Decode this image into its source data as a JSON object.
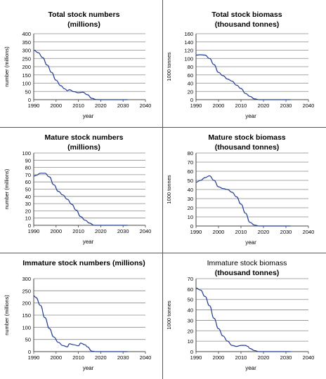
{
  "chart_data": [
    {
      "type": "line",
      "title": "Total stock numbers",
      "subtitle": "(millions)",
      "title_style": "bold",
      "xlabel": "year",
      "ylabel": "number (millions)",
      "xlim": [
        1990,
        2040
      ],
      "ylim": [
        0,
        400
      ],
      "xticks": [
        1990,
        2000,
        2010,
        2020,
        2030,
        2040
      ],
      "yticks": [
        0,
        50,
        100,
        150,
        200,
        250,
        300,
        350,
        400
      ],
      "grid": true,
      "series_color": "#1f3a93",
      "x": [
        1990,
        1992,
        1994,
        1996,
        1998,
        2000,
        2002,
        2004,
        2005,
        2006,
        2008,
        2010,
        2012,
        2014,
        2016,
        2018,
        2020,
        2025,
        2032
      ],
      "y": [
        300,
        285,
        255,
        210,
        165,
        118,
        85,
        65,
        55,
        60,
        48,
        42,
        45,
        30,
        8,
        1,
        0,
        0,
        0
      ]
    },
    {
      "type": "line",
      "title": "Total stock biomass",
      "subtitle": "(thousand tonnes)",
      "title_style": "bold",
      "xlabel": "year",
      "ylabel": "1000 tonnes",
      "xlim": [
        1990,
        2040
      ],
      "ylim": [
        0,
        160
      ],
      "xticks": [
        1990,
        2000,
        2010,
        2020,
        2030,
        2040
      ],
      "yticks": [
        0,
        20,
        40,
        60,
        80,
        100,
        120,
        140,
        160
      ],
      "grid": true,
      "series_color": "#1f3a93",
      "x": [
        1990,
        1992,
        1994,
        1996,
        1998,
        2000,
        2002,
        2004,
        2006,
        2008,
        2010,
        2012,
        2014,
        2016,
        2018,
        2025,
        2032
      ],
      "y": [
        108,
        109,
        108,
        100,
        85,
        66,
        58,
        50,
        45,
        35,
        27,
        15,
        8,
        2,
        0,
        0,
        0
      ]
    },
    {
      "type": "line",
      "title": "Mature stock numbers",
      "subtitle": "(millions)",
      "title_style": "bold",
      "xlabel": "year",
      "ylabel": "number (millions)",
      "xlim": [
        1990,
        2040
      ],
      "ylim": [
        0,
        100
      ],
      "xticks": [
        1990,
        2000,
        2010,
        2020,
        2030,
        2040
      ],
      "yticks": [
        0,
        10,
        20,
        30,
        40,
        50,
        60,
        70,
        80,
        90,
        100
      ],
      "grid": true,
      "series_color": "#1f3a93",
      "x": [
        1990,
        1991,
        1993,
        1995,
        1997,
        1999,
        2001,
        2003,
        2005,
        2007,
        2009,
        2011,
        2013,
        2015,
        2017,
        2020,
        2032
      ],
      "y": [
        68,
        69,
        72,
        72,
        67,
        56,
        47,
        42,
        36,
        29,
        21,
        12,
        7,
        3,
        0,
        0,
        0
      ]
    },
    {
      "type": "line",
      "title": "Mature stock biomass",
      "subtitle": "(thousand tonnes)",
      "title_style": "bold",
      "xlabel": "year",
      "ylabel": "1000 tonnes",
      "xlim": [
        1990,
        2040
      ],
      "ylim": [
        0,
        80
      ],
      "xticks": [
        1990,
        2000,
        2010,
        2020,
        2030,
        2040
      ],
      "yticks": [
        0,
        10,
        20,
        30,
        40,
        50,
        60,
        70,
        80
      ],
      "grid": true,
      "series_color": "#1f3a93",
      "x": [
        1990,
        1992,
        1994,
        1996,
        1998,
        2000,
        2002,
        2004,
        2006,
        2008,
        2010,
        2012,
        2014,
        2016,
        2018,
        2025,
        2032
      ],
      "y": [
        48,
        50,
        53,
        55,
        50,
        43,
        41,
        40,
        37,
        32,
        24,
        14,
        4,
        1,
        0,
        0,
        0
      ]
    },
    {
      "type": "line",
      "title": "Immature stock numbers (millions)",
      "subtitle": "",
      "title_style": "bold",
      "xlabel": "year",
      "ylabel": "number (millions)",
      "xlim": [
        1990,
        2040
      ],
      "ylim": [
        0,
        300
      ],
      "xticks": [
        1990,
        2000,
        2010,
        2020,
        2030,
        2040
      ],
      "yticks": [
        0,
        50,
        100,
        150,
        200,
        250,
        300
      ],
      "grid": true,
      "series_color": "#1f3a93",
      "x": [
        1990,
        1991,
        1993,
        1995,
        1997,
        1999,
        2001,
        2003,
        2005,
        2006,
        2008,
        2010,
        2011,
        2013,
        2014,
        2016,
        2018,
        2020,
        2032
      ],
      "y": [
        230,
        222,
        190,
        140,
        95,
        60,
        38,
        25,
        20,
        32,
        28,
        24,
        35,
        28,
        20,
        2,
        0,
        0,
        0
      ]
    },
    {
      "type": "line",
      "title": "Immature stock biomass",
      "subtitle": "(thousand tonnes)",
      "title_style": "mixed",
      "xlabel": "year",
      "ylabel": "1000 tonnes",
      "xlim": [
        1990,
        2040
      ],
      "ylim": [
        0,
        70
      ],
      "xticks": [
        1990,
        2000,
        2010,
        2020,
        2030,
        2040
      ],
      "yticks": [
        0,
        10,
        20,
        30,
        40,
        50,
        60,
        70
      ],
      "grid": true,
      "series_color": "#1f3a93",
      "x": [
        1990,
        1992,
        1994,
        1996,
        1998,
        2000,
        2002,
        2004,
        2006,
        2008,
        2010,
        2012,
        2013,
        2014,
        2016,
        2018,
        2025,
        2032
      ],
      "y": [
        61,
        59,
        53,
        44,
        32,
        22,
        15,
        10,
        6,
        5,
        6,
        6,
        5,
        3,
        1,
        0,
        0,
        0
      ]
    }
  ]
}
